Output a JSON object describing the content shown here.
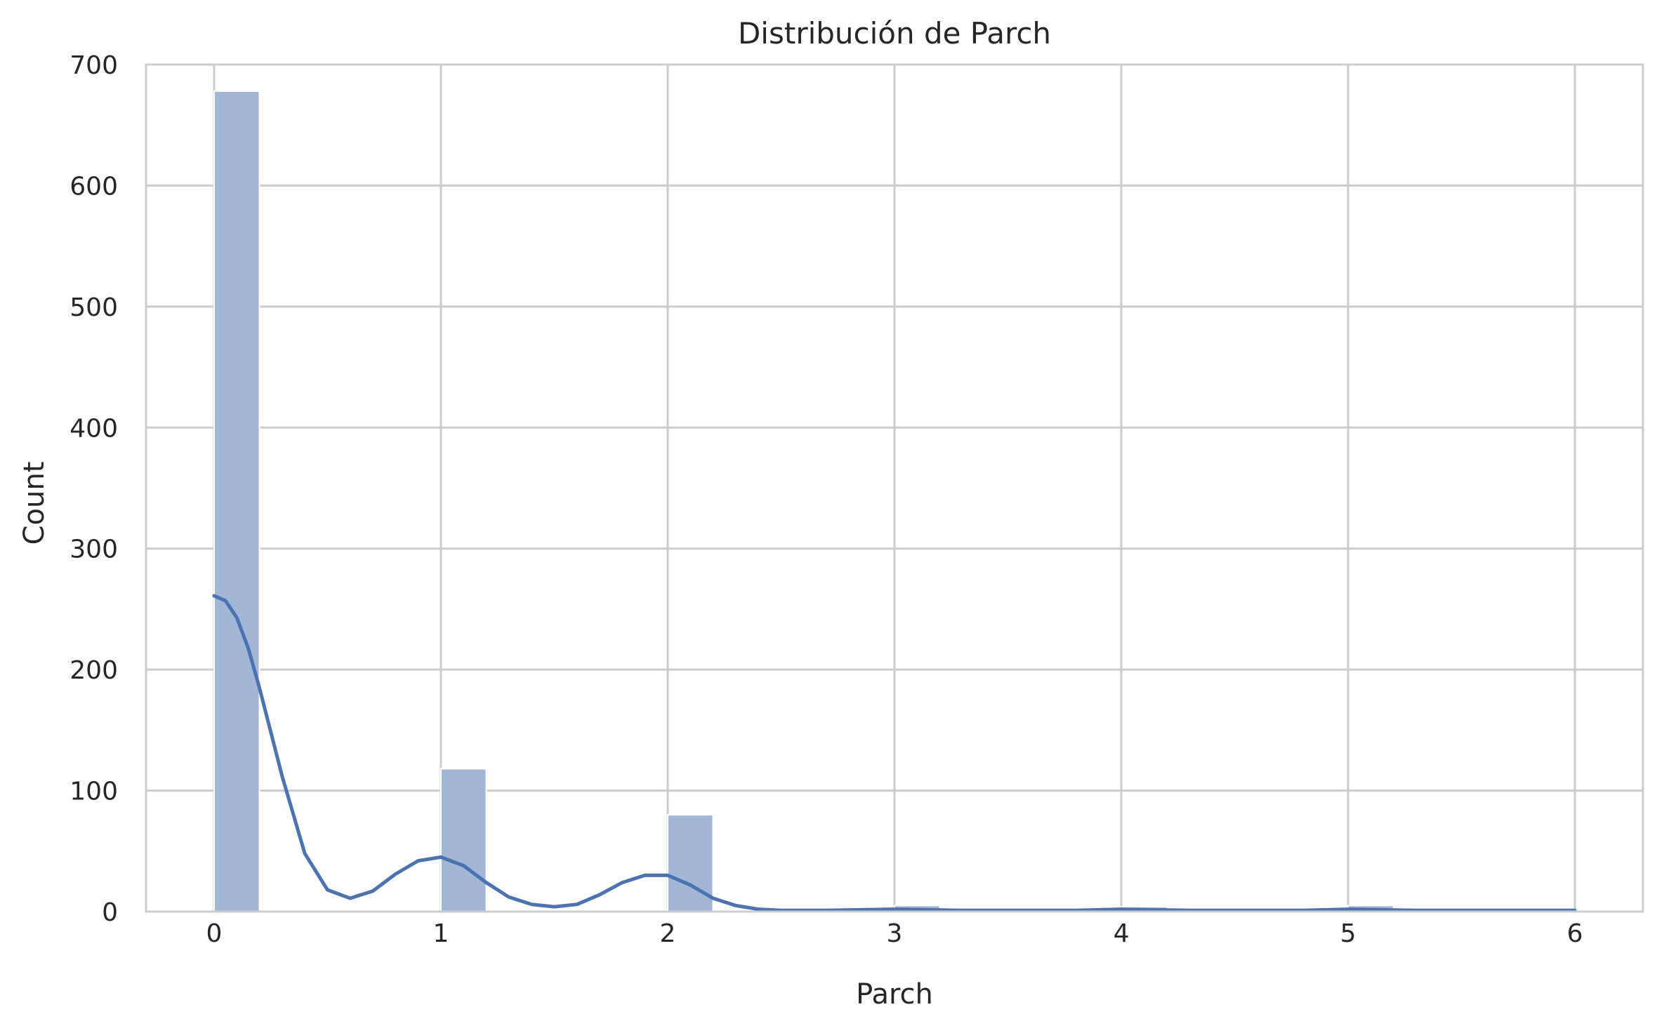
{
  "chart_data": {
    "type": "bar",
    "title": "Distribución de Parch",
    "xlabel": "Parch",
    "ylabel": "Count",
    "xlim": [
      -0.3,
      6.3
    ],
    "ylim": [
      0,
      700
    ],
    "xticks": [
      0,
      1,
      2,
      3,
      4,
      5,
      6
    ],
    "yticks": [
      0,
      100,
      200,
      300,
      400,
      500,
      600,
      700
    ],
    "grid": true,
    "legend": "none",
    "bar_color": "#a2b7d8",
    "line_color": "#4c72b0",
    "bins": [
      {
        "x0": 0.0,
        "x1": 0.2,
        "count": 678
      },
      {
        "x0": 1.0,
        "x1": 1.2,
        "count": 118
      },
      {
        "x0": 2.0,
        "x1": 2.2,
        "count": 80
      },
      {
        "x0": 3.0,
        "x1": 3.2,
        "count": 5
      },
      {
        "x0": 4.0,
        "x1": 4.2,
        "count": 4
      },
      {
        "x0": 5.0,
        "x1": 5.2,
        "count": 5
      },
      {
        "x0": 5.8,
        "x1": 6.0,
        "count": 1
      }
    ],
    "kde": {
      "x": [
        0.0,
        0.05,
        0.1,
        0.15,
        0.2,
        0.3,
        0.4,
        0.5,
        0.6,
        0.7,
        0.8,
        0.9,
        1.0,
        1.1,
        1.2,
        1.3,
        1.4,
        1.5,
        1.6,
        1.7,
        1.8,
        1.9,
        2.0,
        2.1,
        2.2,
        2.3,
        2.4,
        2.5,
        2.7,
        3.0,
        3.3,
        3.5,
        3.8,
        4.0,
        4.3,
        4.5,
        4.8,
        5.0,
        5.3,
        5.6,
        6.0
      ],
      "y": [
        261,
        257,
        243,
        218,
        185,
        112,
        48,
        18,
        11,
        17,
        31,
        42,
        45,
        38,
        24,
        12,
        6,
        4,
        6,
        14,
        24,
        30,
        30,
        22,
        11,
        5,
        2,
        1,
        1,
        2,
        1,
        1,
        1,
        2,
        1,
        1,
        1,
        2,
        1,
        1,
        1
      ]
    }
  }
}
